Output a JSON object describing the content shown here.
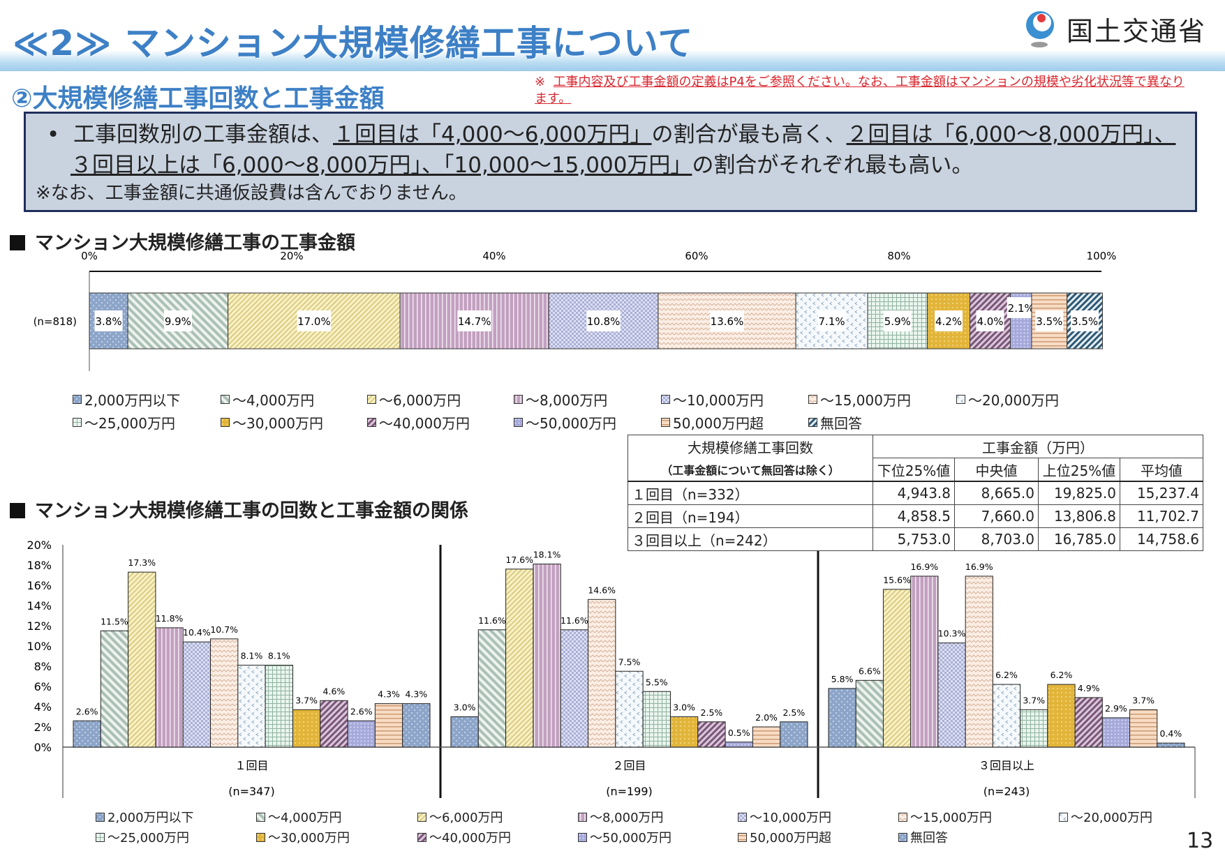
{
  "header": {
    "title": "≪2≫ マンション大規模修繕工事について",
    "logo_text": "国土交通省"
  },
  "subtitle": "②大規模修繕工事回数と工事金額",
  "note": {
    "mark": "※",
    "text": "工事内容及び工事金額の定義はP4をご参照ください。なお、工事金額はマンションの規模や劣化状況等で異なります。"
  },
  "summary": {
    "bullet": "•",
    "p1": "工事回数別の工事金額は、",
    "u1": "１回目は「4,000～6,000万円」",
    "p2": "の割合が最も高く、",
    "u2": "２回目は「6,000～8,000万円」、３回目以上は「6,000～8,000万円」、「10,000～15,000万円」",
    "p3": "の割合がそれぞれ最も高い。",
    "footnote": "※なお、工事金額に共通仮設費は含んでおりません。"
  },
  "section1_title": "マンション大規模修繕工事の工事金額",
  "section2_title": "マンション大規模修繕工事の回数と工事金額の関係",
  "legend_top": [
    "2,000万円以下",
    "～4,000万円",
    "～6,000万円",
    "～8,000万円",
    "～10,000万円",
    "～15,000万円",
    "～20,000万円",
    "～25,000万円",
    "～30,000万円",
    "～40,000万円",
    "～50,000万円",
    "50,000万円超",
    "無回答"
  ],
  "legend_bottom": [
    "2,000万円以下",
    "～4,000万円",
    "～6,000万円",
    "～8,000万円",
    "～10,000万円",
    "～15,000万円",
    "～20,000万円",
    "～25,000万円",
    "～30,000万円",
    "～40,000万円",
    "～50,000万円",
    "50,000万円超",
    "無回答"
  ],
  "table": {
    "head_left_1": "大規模修繕工事回数",
    "head_left_2": "（工事金額について無回答は除く）",
    "head_right": "工事金額（万円）",
    "cols": [
      "下位25%値",
      "中央値",
      "上位25%値",
      "平均値"
    ],
    "rows": [
      {
        "label": "１回目（n=332）",
        "values": [
          "4,943.8",
          "8,665.0",
          "19,825.0",
          "15,237.4"
        ]
      },
      {
        "label": "２回目（n=194）",
        "values": [
          "4,858.5",
          "7,660.0",
          "13,806.8",
          "11,702.7"
        ]
      },
      {
        "label": "３回目以上（n=242）",
        "values": [
          "5,753.0",
          "8,703.0",
          "16,785.0",
          "14,758.6"
        ]
      }
    ]
  },
  "page_number": "13",
  "chart_data": [
    {
      "type": "bar",
      "orientation": "horizontal-stacked",
      "title": "マンション大規模修繕工事の工事金額",
      "row_label": "(n=818)",
      "xlim": [
        0,
        100
      ],
      "ticks": [
        "0%",
        "20%",
        "40%",
        "60%",
        "80%",
        "100%"
      ],
      "series_names": [
        "2,000万円以下",
        "～4,000万円",
        "～6,000万円",
        "～8,000万円",
        "～10,000万円",
        "～15,000万円",
        "～20,000万円",
        "～25,000万円",
        "～30,000万円",
        "～40,000万円",
        "～50,000万円",
        "50,000万円超",
        "無回答"
      ],
      "values": [
        3.8,
        9.9,
        17.0,
        14.7,
        10.8,
        13.6,
        7.1,
        5.9,
        4.2,
        4.0,
        2.1,
        3.5,
        3.5
      ],
      "labels": [
        "3.8%",
        "9.9%",
        "17.0%",
        "14.7%",
        "10.8%",
        "13.6%",
        "7.1%",
        "5.9%",
        "4.2%",
        "4.0%",
        "2.1%",
        "3.5%",
        "3.5%"
      ],
      "legend": "bottom"
    },
    {
      "type": "bar",
      "title": "マンション大規模修繕工事の回数と工事金額の関係",
      "ylim": [
        0,
        20
      ],
      "yticks": [
        "0%",
        "2%",
        "4%",
        "6%",
        "8%",
        "10%",
        "12%",
        "14%",
        "16%",
        "18%",
        "20%"
      ],
      "series_names": [
        "2,000万円以下",
        "～4,000万円",
        "～6,000万円",
        "～8,000万円",
        "～10,000万円",
        "～15,000万円",
        "～20,000万円",
        "～25,000万円",
        "～30,000万円",
        "～40,000万円",
        "～50,000万円",
        "50,000万円超",
        "無回答"
      ],
      "groups": [
        {
          "category": "１回目",
          "n": "(n=347)",
          "values": [
            2.6,
            11.5,
            17.3,
            11.8,
            10.4,
            10.7,
            8.1,
            8.1,
            3.7,
            4.6,
            2.6,
            4.3,
            4.3
          ]
        },
        {
          "category": "２回目",
          "n": "(n=199)",
          "values": [
            3.0,
            11.6,
            17.6,
            18.1,
            11.6,
            14.6,
            7.5,
            5.5,
            3.0,
            2.5,
            0.5,
            2.0,
            2.5
          ]
        },
        {
          "category": "３回目以上",
          "n": "(n=243)",
          "values": [
            5.8,
            6.6,
            15.6,
            16.9,
            10.3,
            16.9,
            6.2,
            3.7,
            6.2,
            4.9,
            2.9,
            3.7,
            0.4
          ]
        }
      ],
      "legend": "bottom"
    }
  ],
  "colors": {
    "title_blue": "#3d80c6",
    "note_red": "#d8262e",
    "summary_bg": "#c9d3e0",
    "summary_border": "#1f2f5a"
  }
}
